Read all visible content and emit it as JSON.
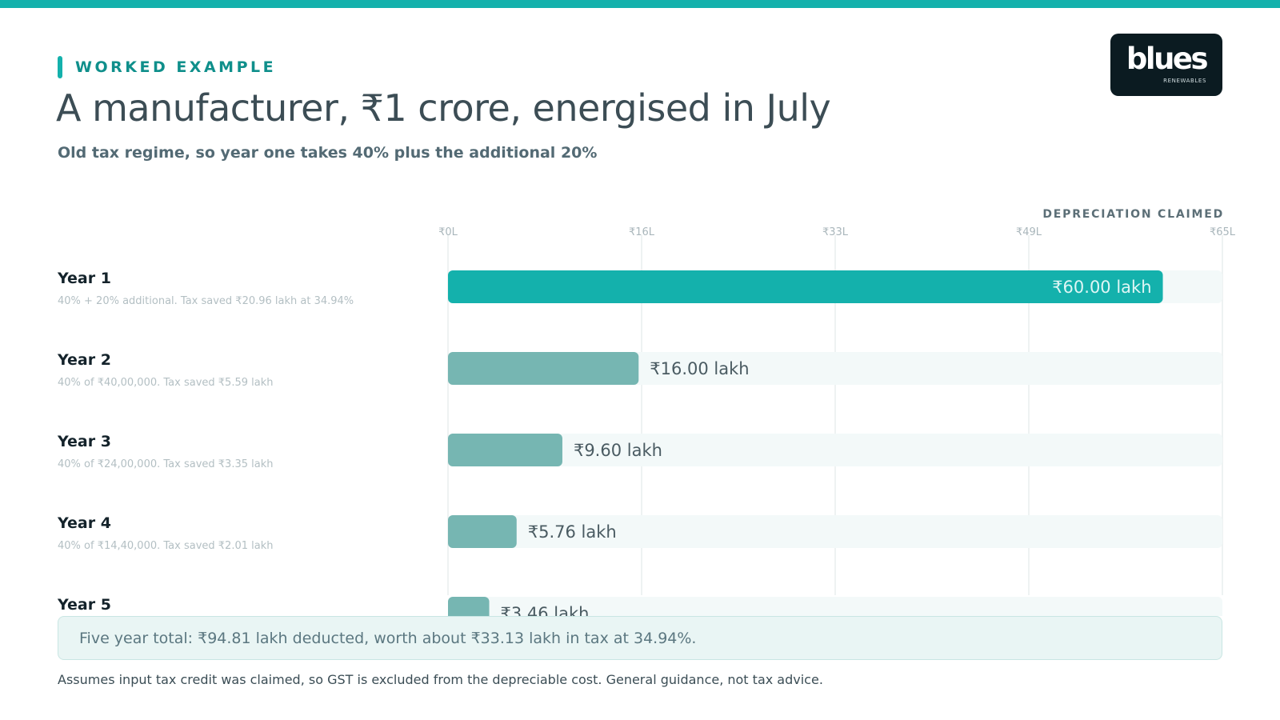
{
  "header": {
    "eyebrow": "WORKED EXAMPLE",
    "title": "A manufacturer, ₹1 crore, energised in July",
    "subtitle": "Old tax regime, so year one takes 40% plus the additional 20%"
  },
  "logo": {
    "word": "blues",
    "sub": "RENEWABLES"
  },
  "colors": {
    "accent": "#14b1ac",
    "bar_secondary": "#76b6b2",
    "track": "#f3f9f9",
    "grid": "#e3e9ea"
  },
  "chart_data": {
    "type": "bar",
    "orientation": "horizontal",
    "caption": "DEPRECIATION CLAIMED",
    "unit": "lakh",
    "xlim": [
      0,
      65
    ],
    "ticks": [
      "₹0L",
      "₹16L",
      "₹33L",
      "₹49L",
      "₹65L"
    ],
    "tick_values": [
      0,
      16.25,
      32.5,
      48.75,
      65
    ],
    "categories": [
      "Year 1",
      "Year 2",
      "Year 3",
      "Year 4",
      "Year 5"
    ],
    "notes": [
      "40% + 20% additional. Tax saved ₹20.96 lakh at 34.94%",
      "40% of ₹40,00,000. Tax saved ₹5.59 lakh",
      "40% of ₹24,00,000. Tax saved ₹3.35 lakh",
      "40% of ₹14,40,000. Tax saved ₹2.01 lakh",
      ""
    ],
    "values": [
      60.0,
      16.0,
      9.6,
      5.76,
      3.46
    ],
    "value_labels": [
      "₹60.00 lakh",
      "₹16.00 lakh",
      "₹9.60 lakh",
      "₹5.76 lakh",
      "₹3.46 lakh"
    ],
    "grid": true
  },
  "summary": "Five year total: ₹94.81 lakh deducted, worth about ₹33.13 lakh in tax at 34.94%.",
  "disclaimer": "Assumes input tax credit was claimed, so GST is excluded from the depreciable cost. General guidance, not tax advice."
}
